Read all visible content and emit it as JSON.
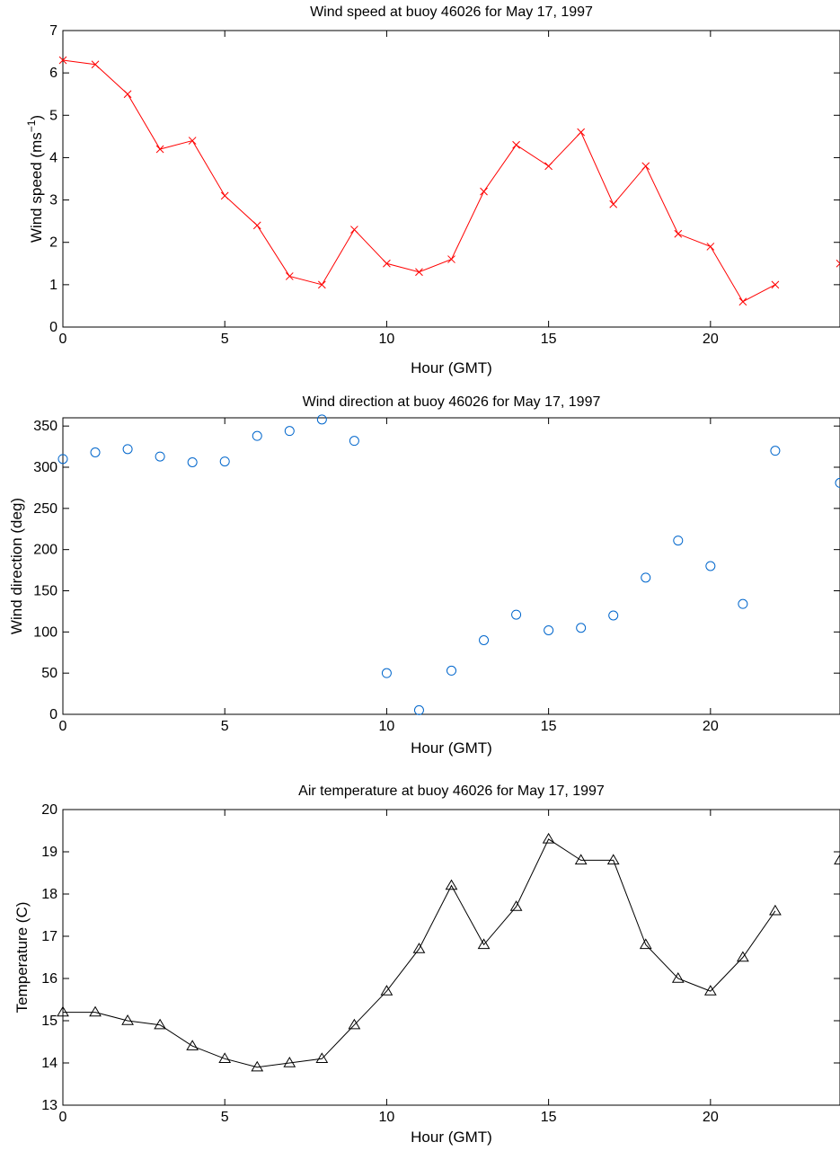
{
  "chart_data": [
    {
      "type": "line",
      "title": "Wind speed at buoy 46026 for May 17, 1997",
      "xlabel": "Hour (GMT)",
      "ylabel_main": "Wind speed (ms",
      "ylabel_sup": "−1",
      "ylabel_tail": ")",
      "xlim": [
        0,
        24
      ],
      "ylim": [
        0,
        7
      ],
      "xticks": [
        0,
        5,
        10,
        15,
        20
      ],
      "yticks": [
        0,
        1,
        2,
        3,
        4,
        5,
        6,
        7
      ],
      "marker": "x",
      "color": "#ff0000",
      "connected": true,
      "x": [
        0,
        1,
        2,
        3,
        4,
        5,
        6,
        7,
        8,
        9,
        10,
        11,
        12,
        13,
        14,
        15,
        16,
        17,
        18,
        19,
        20,
        21,
        22,
        24
      ],
      "y": [
        6.3,
        6.2,
        5.5,
        4.2,
        4.4,
        3.1,
        2.4,
        1.2,
        1.0,
        2.3,
        1.5,
        1.3,
        1.6,
        3.2,
        4.3,
        3.8,
        4.6,
        2.9,
        3.8,
        2.2,
        1.9,
        0.6,
        1.0,
        1.5
      ]
    },
    {
      "type": "scatter",
      "title": "Wind direction at buoy 46026 for May 17, 1997",
      "xlabel": "Hour (GMT)",
      "ylabel_main": "Wind direction (deg)",
      "xlim": [
        0,
        24
      ],
      "ylim": [
        0,
        360
      ],
      "xticks": [
        0,
        5,
        10,
        15,
        20
      ],
      "yticks": [
        0,
        50,
        100,
        150,
        200,
        250,
        300,
        350
      ],
      "marker": "o",
      "color": "#0066cc",
      "connected": false,
      "x": [
        0,
        1,
        2,
        3,
        4,
        5,
        6,
        7,
        8,
        9,
        10,
        11,
        12,
        13,
        14,
        15,
        16,
        17,
        18,
        19,
        20,
        21,
        22,
        24
      ],
      "y": [
        310,
        318,
        322,
        313,
        306,
        307,
        338,
        344,
        358,
        332,
        50,
        5,
        53,
        90,
        121,
        102,
        105,
        120,
        166,
        211,
        180,
        134,
        320,
        281
      ]
    },
    {
      "type": "line",
      "title": "Air temperature at buoy 46026 for May 17, 1997",
      "xlabel": "Hour (GMT)",
      "ylabel_main": "Temperature (C)",
      "xlim": [
        0,
        24
      ],
      "ylim": [
        13,
        20
      ],
      "xticks": [
        0,
        5,
        10,
        15,
        20
      ],
      "yticks": [
        13,
        14,
        15,
        16,
        17,
        18,
        19,
        20
      ],
      "marker": "triangle",
      "color": "#000000",
      "connected": true,
      "x": [
        0,
        1,
        2,
        3,
        4,
        5,
        6,
        7,
        8,
        9,
        10,
        11,
        12,
        13,
        14,
        15,
        16,
        17,
        18,
        19,
        20,
        21,
        22,
        24
      ],
      "y": [
        15.2,
        15.2,
        15.0,
        14.9,
        14.4,
        14.1,
        13.9,
        14.0,
        14.1,
        14.9,
        15.7,
        16.7,
        18.2,
        16.8,
        17.7,
        19.3,
        18.8,
        18.8,
        16.8,
        16.0,
        15.7,
        16.5,
        17.6,
        18.8
      ]
    }
  ]
}
